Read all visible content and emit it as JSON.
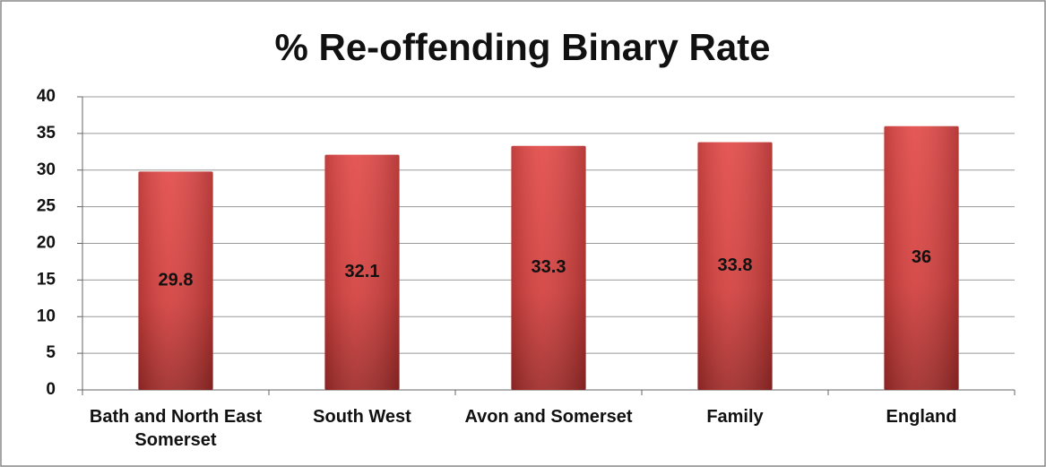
{
  "chart_data": {
    "type": "bar",
    "title": "% Re-offending Binary Rate",
    "categories": [
      "Bath and North East Somerset",
      "South West",
      "Avon and Somerset",
      "Family",
      "England"
    ],
    "values": [
      29.8,
      32.1,
      33.3,
      33.8,
      36
    ],
    "color": "#d94040",
    "ylim": [
      0,
      40
    ],
    "yticks": [
      0,
      5,
      10,
      15,
      20,
      25,
      30,
      35,
      40
    ],
    "grid": true
  }
}
